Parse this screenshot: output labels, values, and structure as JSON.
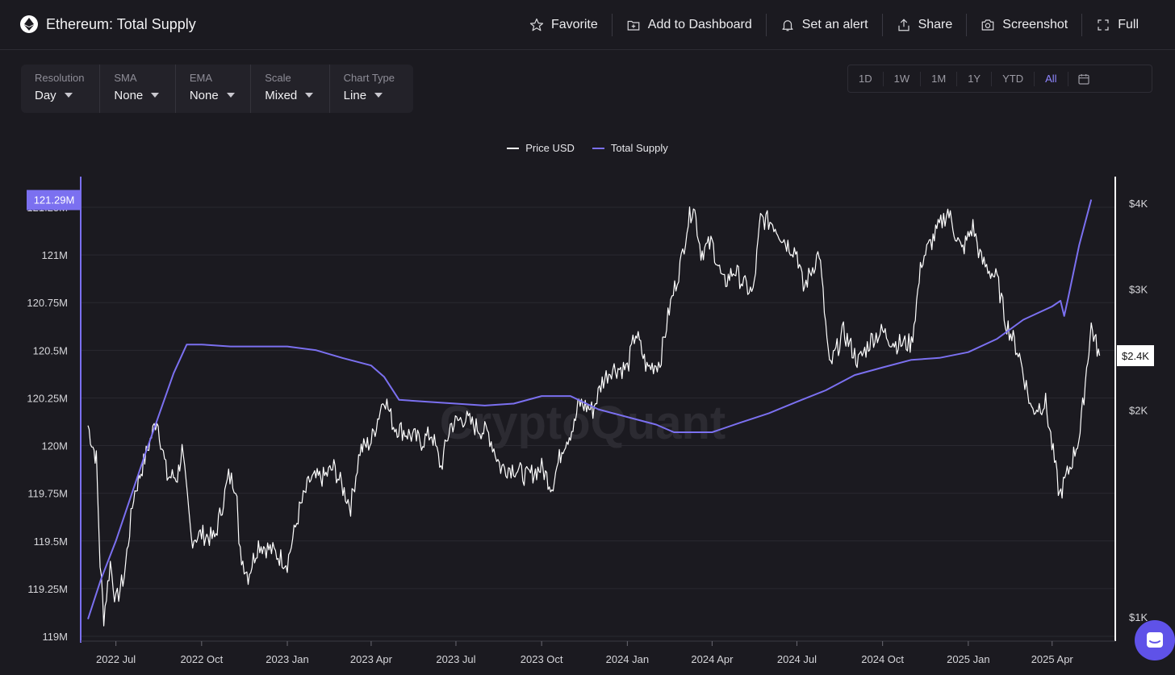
{
  "header": {
    "title": "Ethereum: Total Supply",
    "actions": [
      {
        "label": "Favorite",
        "icon": "star-icon"
      },
      {
        "label": "Add to Dashboard",
        "icon": "add-dashboard-icon"
      },
      {
        "label": "Set an alert",
        "icon": "bell-icon"
      },
      {
        "label": "Share",
        "icon": "share-icon"
      },
      {
        "label": "Screenshot",
        "icon": "camera-icon"
      },
      {
        "label": "Full",
        "icon": "fullscreen-icon"
      }
    ]
  },
  "controls": [
    {
      "label": "Resolution",
      "value": "Day"
    },
    {
      "label": "SMA",
      "value": "None"
    },
    {
      "label": "EMA",
      "value": "None"
    },
    {
      "label": "Scale",
      "value": "Mixed"
    },
    {
      "label": "Chart Type",
      "value": "Line"
    }
  ],
  "ranges": {
    "items": [
      "1D",
      "1W",
      "1M",
      "1Y",
      "YTD",
      "All"
    ],
    "active": "All"
  },
  "legend": [
    {
      "label": "Price USD",
      "color": "#ffffff"
    },
    {
      "label": "Total Supply",
      "color": "#7b70f0"
    }
  ],
  "watermark": "CryptoQuant",
  "colors": {
    "background": "#1b1a20",
    "accent": "#7b70f0",
    "price_line": "#ffffff",
    "help_button": "#5f52e8"
  },
  "chart_data": {
    "type": "line",
    "x_ticks": [
      "2022 Jul",
      "2022 Oct",
      "2023 Jan",
      "2023 Apr",
      "2023 Jul",
      "2023 Oct",
      "2024 Jan",
      "2024 Apr",
      "2024 Jul",
      "2024 Oct",
      "2025 Jan",
      "2025 Apr"
    ],
    "x_range": [
      "2022-06-01",
      "2025-05-31"
    ],
    "left_axis": {
      "ticks": [
        "119M",
        "119.25M",
        "119.5M",
        "119.75M",
        "120M",
        "120.25M",
        "120.5M",
        "120.75M",
        "121M",
        "121.25M"
      ],
      "range": [
        119000000,
        121290000
      ],
      "current_value_label": "121.29M"
    },
    "right_axis": {
      "scale": "log",
      "ticks": [
        "$1K",
        "$2K",
        "$3K",
        "$4K"
      ],
      "current_value_label": "$2.4K"
    },
    "series": [
      {
        "name": "Total Supply",
        "axis": "left",
        "color": "#7b70f0",
        "points": [
          [
            "2022-06-01",
            119090000
          ],
          [
            "2022-06-15",
            119300000
          ],
          [
            "2022-07-01",
            119500000
          ],
          [
            "2022-08-01",
            119950000
          ],
          [
            "2022-09-01",
            120380000
          ],
          [
            "2022-09-15",
            120530000
          ],
          [
            "2022-10-01",
            120530000
          ],
          [
            "2022-11-01",
            120520000
          ],
          [
            "2022-12-01",
            120520000
          ],
          [
            "2023-01-01",
            120520000
          ],
          [
            "2023-02-01",
            120500000
          ],
          [
            "2023-03-01",
            120460000
          ],
          [
            "2023-04-01",
            120420000
          ],
          [
            "2023-04-15",
            120360000
          ],
          [
            "2023-05-01",
            120240000
          ],
          [
            "2023-06-01",
            120230000
          ],
          [
            "2023-07-01",
            120220000
          ],
          [
            "2023-08-01",
            120210000
          ],
          [
            "2023-09-01",
            120220000
          ],
          [
            "2023-10-01",
            120260000
          ],
          [
            "2023-11-01",
            120260000
          ],
          [
            "2023-12-01",
            120190000
          ],
          [
            "2024-01-01",
            120150000
          ],
          [
            "2024-02-01",
            120110000
          ],
          [
            "2024-02-20",
            120070000
          ],
          [
            "2024-04-01",
            120070000
          ],
          [
            "2024-05-01",
            120120000
          ],
          [
            "2024-06-01",
            120170000
          ],
          [
            "2024-07-01",
            120230000
          ],
          [
            "2024-08-01",
            120290000
          ],
          [
            "2024-09-01",
            120370000
          ],
          [
            "2024-10-01",
            120410000
          ],
          [
            "2024-11-01",
            120450000
          ],
          [
            "2024-12-01",
            120460000
          ],
          [
            "2025-01-01",
            120490000
          ],
          [
            "2025-02-01",
            120560000
          ],
          [
            "2025-03-01",
            120660000
          ],
          [
            "2025-04-01",
            120730000
          ],
          [
            "2025-04-10",
            120760000
          ],
          [
            "2025-04-14",
            120680000
          ],
          [
            "2025-04-18",
            120770000
          ],
          [
            "2025-04-30",
            121050000
          ],
          [
            "2025-05-13",
            121290000
          ]
        ]
      },
      {
        "name": "Price USD",
        "axis": "right",
        "color": "#ffffff",
        "points": [
          [
            "2022-06-01",
            1900
          ],
          [
            "2022-06-05",
            1800
          ],
          [
            "2022-06-10",
            1700
          ],
          [
            "2022-06-14",
            1200
          ],
          [
            "2022-06-18",
            1000
          ],
          [
            "2022-06-25",
            1200
          ],
          [
            "2022-07-01",
            1050
          ],
          [
            "2022-07-10",
            1150
          ],
          [
            "2022-07-20",
            1500
          ],
          [
            "2022-08-01",
            1700
          ],
          [
            "2022-08-14",
            1950
          ],
          [
            "2022-08-25",
            1600
          ],
          [
            "2022-09-05",
            1600
          ],
          [
            "2022-09-10",
            1750
          ],
          [
            "2022-09-20",
            1300
          ],
          [
            "2022-10-01",
            1320
          ],
          [
            "2022-10-15",
            1300
          ],
          [
            "2022-10-30",
            1600
          ],
          [
            "2022-11-08",
            1550
          ],
          [
            "2022-11-10",
            1250
          ],
          [
            "2022-11-20",
            1150
          ],
          [
            "2022-12-01",
            1280
          ],
          [
            "2022-12-15",
            1250
          ],
          [
            "2022-12-25",
            1220
          ],
          [
            "2023-01-01",
            1200
          ],
          [
            "2023-01-14",
            1430
          ],
          [
            "2023-01-25",
            1580
          ],
          [
            "2023-02-10",
            1600
          ],
          [
            "2023-02-20",
            1650
          ],
          [
            "2023-03-10",
            1450
          ],
          [
            "2023-03-20",
            1750
          ],
          [
            "2023-04-01",
            1800
          ],
          [
            "2023-04-15",
            2100
          ],
          [
            "2023-04-25",
            1900
          ],
          [
            "2023-05-10",
            1850
          ],
          [
            "2023-05-25",
            1800
          ],
          [
            "2023-06-05",
            1850
          ],
          [
            "2023-06-15",
            1650
          ],
          [
            "2023-06-25",
            1900
          ],
          [
            "2023-07-10",
            1950
          ],
          [
            "2023-07-20",
            1900
          ],
          [
            "2023-08-05",
            1850
          ],
          [
            "2023-08-18",
            1650
          ],
          [
            "2023-09-01",
            1650
          ],
          [
            "2023-09-15",
            1600
          ],
          [
            "2023-10-01",
            1650
          ],
          [
            "2023-10-12",
            1550
          ],
          [
            "2023-10-24",
            1780
          ],
          [
            "2023-11-05",
            1900
          ],
          [
            "2023-11-10",
            2050
          ],
          [
            "2023-11-25",
            2000
          ],
          [
            "2023-12-05",
            2200
          ],
          [
            "2023-12-15",
            2300
          ],
          [
            "2024-01-01",
            2300
          ],
          [
            "2024-01-10",
            2600
          ],
          [
            "2024-01-22",
            2300
          ],
          [
            "2024-02-05",
            2350
          ],
          [
            "2024-02-15",
            2800
          ],
          [
            "2024-02-28",
            3300
          ],
          [
            "2024-03-05",
            3700
          ],
          [
            "2024-03-12",
            4000
          ],
          [
            "2024-03-20",
            3400
          ],
          [
            "2024-04-01",
            3500
          ],
          [
            "2024-04-13",
            3050
          ],
          [
            "2024-04-25",
            3200
          ],
          [
            "2024-05-05",
            3050
          ],
          [
            "2024-05-15",
            2950
          ],
          [
            "2024-05-23",
            3800
          ],
          [
            "2024-06-05",
            3750
          ],
          [
            "2024-06-20",
            3500
          ],
          [
            "2024-07-01",
            3400
          ],
          [
            "2024-07-08",
            3000
          ],
          [
            "2024-07-25",
            3400
          ],
          [
            "2024-08-05",
            2300
          ],
          [
            "2024-08-20",
            2600
          ],
          [
            "2024-09-05",
            2350
          ],
          [
            "2024-09-20",
            2550
          ],
          [
            "2024-10-01",
            2600
          ],
          [
            "2024-10-15",
            2500
          ],
          [
            "2024-11-01",
            2500
          ],
          [
            "2024-11-12",
            3300
          ],
          [
            "2024-12-01",
            3700
          ],
          [
            "2024-12-10",
            3900
          ],
          [
            "2024-12-25",
            3400
          ],
          [
            "2025-01-06",
            3700
          ],
          [
            "2025-01-15",
            3300
          ],
          [
            "2025-02-01",
            3100
          ],
          [
            "2025-02-10",
            2700
          ],
          [
            "2025-02-25",
            2400
          ],
          [
            "2025-03-10",
            2000
          ],
          [
            "2025-03-25",
            2050
          ],
          [
            "2025-04-09",
            1500
          ],
          [
            "2025-04-20",
            1650
          ],
          [
            "2025-05-01",
            1850
          ],
          [
            "2025-05-08",
            2300
          ],
          [
            "2025-05-13",
            2650
          ],
          [
            "2025-05-18",
            2500
          ],
          [
            "2025-05-22",
            2400
          ]
        ]
      }
    ]
  }
}
